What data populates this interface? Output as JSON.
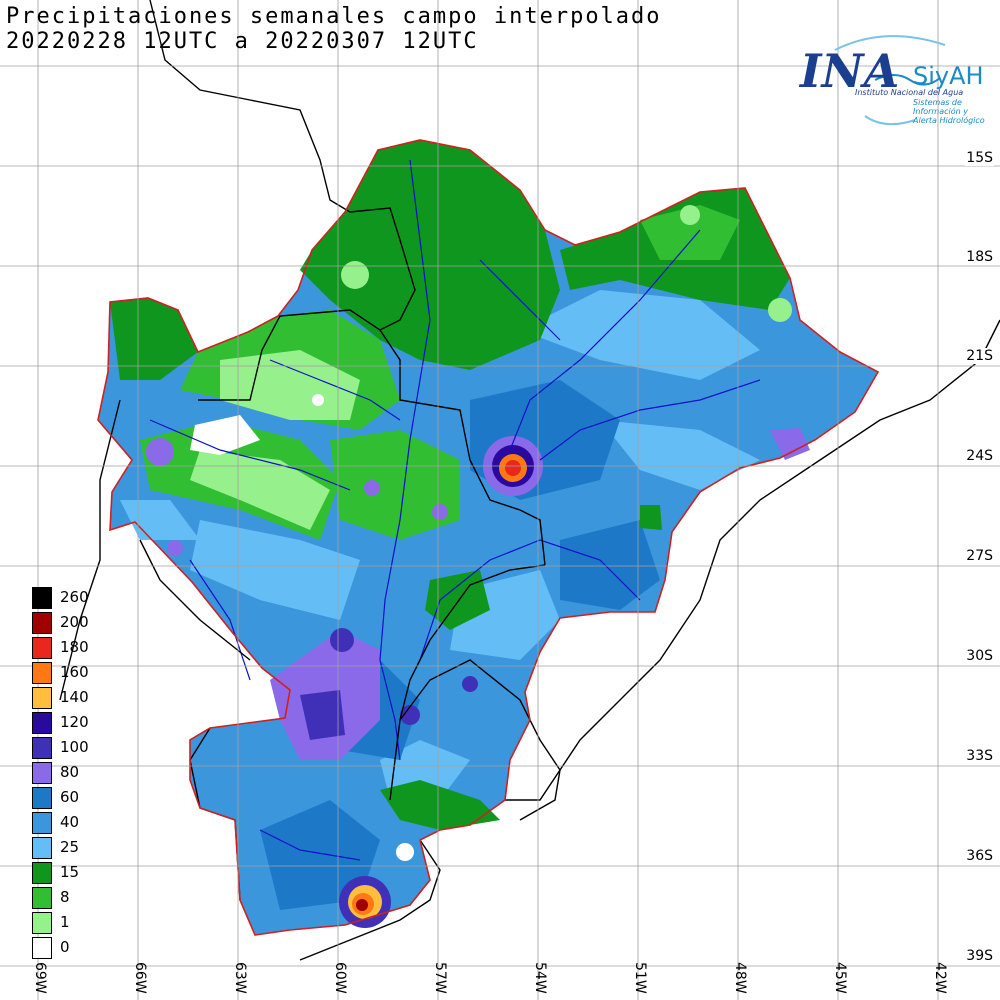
{
  "title": {
    "line1": "Precipitaciones semanales campo interpolado",
    "line2": "20220228 12UTC a 20220307 12UTC"
  },
  "logo": {
    "ina": "INA",
    "siyah": "SiyAH",
    "subtitle1": "Instituto Nacional del Agua",
    "subtitle2": "Sistemas de Información y Alerta Hidrológico"
  },
  "lat_labels": [
    "15S",
    "18S",
    "21S",
    "24S",
    "27S",
    "30S",
    "33S",
    "36S",
    "39S"
  ],
  "lon_labels": [
    "69W",
    "66W",
    "63W",
    "60W",
    "57W",
    "54W",
    "51W",
    "48W",
    "45W",
    "42W"
  ],
  "legend": [
    {
      "label": "260",
      "color": "#000000"
    },
    {
      "label": "200",
      "color": "#a00000"
    },
    {
      "label": "180",
      "color": "#e8281e"
    },
    {
      "label": "160",
      "color": "#ff7814"
    },
    {
      "label": "140",
      "color": "#ffbe3c"
    },
    {
      "label": "120",
      "color": "#2a0a9e"
    },
    {
      "label": "100",
      "color": "#4030b8"
    },
    {
      "label": "80",
      "color": "#8a6ae8"
    },
    {
      "label": "60",
      "color": "#1e78c8"
    },
    {
      "label": "40",
      "color": "#3c96dc"
    },
    {
      "label": "25",
      "color": "#64bef5"
    },
    {
      "label": "15",
      "color": "#0f961e"
    },
    {
      "label": "8",
      "color": "#32be32"
    },
    {
      "label": "1",
      "color": "#96f08c"
    },
    {
      "label": "0",
      "color": "#ffffff"
    }
  ],
  "colors": {
    "basin_outline": "#d02020",
    "rivers": "#1010c8",
    "borders": "#000000",
    "grid": "#a0a0a0"
  }
}
